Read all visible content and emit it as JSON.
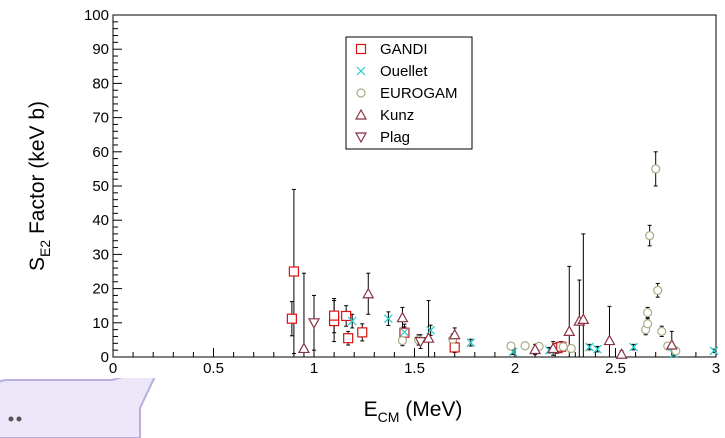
{
  "chart_data": {
    "type": "scatter",
    "xlabel": {
      "main": "E",
      "sub": "CM",
      "rest": " (MeV)"
    },
    "ylabel": {
      "main": "S",
      "sub": "E2",
      "rest": " Factor (keV b)"
    },
    "xlim": [
      0,
      3
    ],
    "ylim": [
      0,
      100
    ],
    "xticks": [
      0,
      0.5,
      1,
      1.5,
      2,
      2.5,
      3
    ],
    "xtick_labels": [
      "0",
      "0.5",
      "1",
      "1.5",
      "2",
      "2.5",
      "3"
    ],
    "yticks": [
      0,
      10,
      20,
      30,
      40,
      50,
      60,
      70,
      80,
      90,
      100
    ],
    "ytick_labels": [
      "0",
      "10",
      "20",
      "30",
      "40",
      "50",
      "60",
      "70",
      "80",
      "90",
      "100"
    ],
    "grid": false,
    "legend": "top-center",
    "series": [
      {
        "name": "GANDI",
        "marker": "square",
        "color": "#dd1111",
        "points": [
          {
            "x": 0.89,
            "y": 11.2,
            "err": 5
          },
          {
            "x": 0.9,
            "y": 25,
            "err": 24
          },
          {
            "x": 1.1,
            "y": 10.5,
            "err": 6
          },
          {
            "x": 1.1,
            "y": 12.1,
            "err": 5
          },
          {
            "x": 1.16,
            "y": 12.0,
            "err": 3
          },
          {
            "x": 1.17,
            "y": 5.5,
            "err": 2
          },
          {
            "x": 1.24,
            "y": 7.2,
            "err": 2.5
          },
          {
            "x": 1.45,
            "y": 7.1,
            "err": 2.5
          },
          {
            "x": 1.7,
            "y": 2.8,
            "err": 1.5
          },
          {
            "x": 2.21,
            "y": 2.6,
            "err": 1.5
          },
          {
            "x": 2.23,
            "y": 3.0,
            "err": 1.5
          }
        ]
      },
      {
        "name": "Ouellet",
        "marker": "x",
        "color": "#22cccc",
        "points": [
          {
            "x": 1.19,
            "y": 10.5,
            "err": 2
          },
          {
            "x": 1.37,
            "y": 11.2,
            "err": 2
          },
          {
            "x": 1.45,
            "y": 7.3,
            "err": 1.5
          },
          {
            "x": 1.58,
            "y": 7.8,
            "err": 1.5
          },
          {
            "x": 1.78,
            "y": 4.2,
            "err": 1
          },
          {
            "x": 1.99,
            "y": 1.5,
            "err": 0.8
          },
          {
            "x": 2.17,
            "y": 2.0,
            "err": 0.8
          },
          {
            "x": 2.37,
            "y": 2.9,
            "err": 0.8
          },
          {
            "x": 2.41,
            "y": 2.3,
            "err": 0.8
          },
          {
            "x": 2.59,
            "y": 2.9,
            "err": 0.8
          },
          {
            "x": 2.79,
            "y": 0.9,
            "err": 0.5
          },
          {
            "x": 2.99,
            "y": 1.8,
            "err": 0.5
          }
        ]
      },
      {
        "name": "EUROGAM",
        "marker": "circle",
        "color": "#aaaa88",
        "points": [
          {
            "x": 1.44,
            "y": 4.8,
            "err": 1.5
          },
          {
            "x": 1.52,
            "y": 5.0,
            "err": 1.5
          },
          {
            "x": 1.69,
            "y": 5.2,
            "err": 1.5
          },
          {
            "x": 1.98,
            "y": 3.2,
            "err": 1
          },
          {
            "x": 2.05,
            "y": 3.3,
            "err": 1
          },
          {
            "x": 2.12,
            "y": 3.1,
            "err": 1
          },
          {
            "x": 2.24,
            "y": 3.0,
            "err": 1
          },
          {
            "x": 2.28,
            "y": 2.5,
            "err": 1
          },
          {
            "x": 2.65,
            "y": 8.0,
            "err": 1.5
          },
          {
            "x": 2.66,
            "y": 9.7,
            "err": 1.5
          },
          {
            "x": 2.66,
            "y": 13.0,
            "err": 1.5
          },
          {
            "x": 2.67,
            "y": 35.5,
            "err": 3
          },
          {
            "x": 2.7,
            "y": 55,
            "err": 5
          },
          {
            "x": 2.71,
            "y": 19.5,
            "err": 2
          },
          {
            "x": 2.73,
            "y": 7.5,
            "err": 1.5
          },
          {
            "x": 2.76,
            "y": 3.2,
            "err": 1
          },
          {
            "x": 2.8,
            "y": 1.8,
            "err": 0.8
          }
        ]
      },
      {
        "name": "Kunz",
        "marker": "triangle-up",
        "color": "#883344",
        "points": [
          {
            "x": 0.95,
            "y": 2.5,
            "err": 22
          },
          {
            "x": 1.27,
            "y": 18.5,
            "err": 6
          },
          {
            "x": 1.44,
            "y": 11.5,
            "err": 3
          },
          {
            "x": 1.57,
            "y": 5.5,
            "err": 11
          },
          {
            "x": 1.7,
            "y": 6.5,
            "err": 2
          },
          {
            "x": 2.1,
            "y": 2.2,
            "err": 1.5
          },
          {
            "x": 2.19,
            "y": 2.5,
            "err": 2
          },
          {
            "x": 2.27,
            "y": 7.5,
            "err": 19
          },
          {
            "x": 2.32,
            "y": 10.5,
            "err": 12
          },
          {
            "x": 2.34,
            "y": 11.0,
            "err": 25
          },
          {
            "x": 2.47,
            "y": 4.8,
            "err": 10
          },
          {
            "x": 2.53,
            "y": 0.8,
            "err": 1
          },
          {
            "x": 2.78,
            "y": 3.5,
            "err": 4
          }
        ]
      },
      {
        "name": "Plag",
        "marker": "triangle-down",
        "color": "#883344",
        "points": [
          {
            "x": 1.0,
            "y": 10.0,
            "err": 8
          },
          {
            "x": 1.53,
            "y": 4.5,
            "err": 2
          }
        ]
      }
    ]
  }
}
